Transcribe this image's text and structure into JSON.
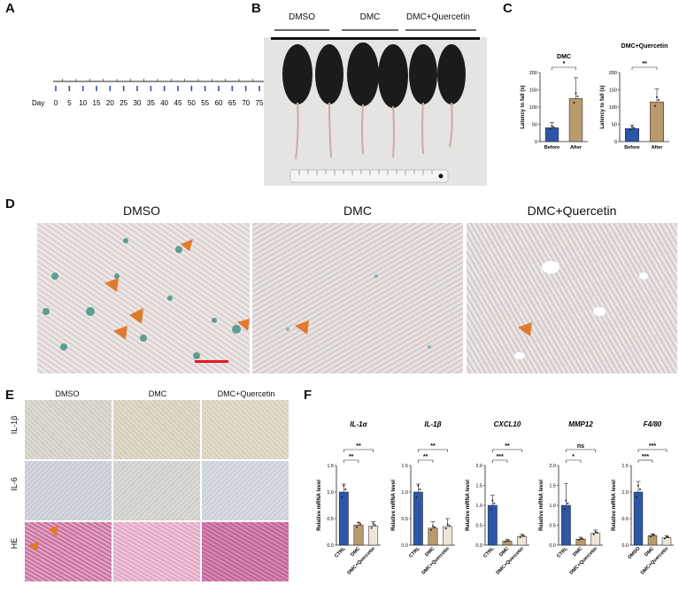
{
  "panels": {
    "A": "A",
    "B": "B",
    "C": "C",
    "D": "D",
    "E": "E",
    "F": "F"
  },
  "timeline": {
    "prefix": "Day",
    "ticks": [
      "0",
      "5",
      "10",
      "15",
      "20",
      "25",
      "30",
      "35",
      "40",
      "45",
      "50",
      "55",
      "60",
      "65",
      "70",
      "75"
    ]
  },
  "panel_b": {
    "groups": [
      "DMSO",
      "DMC",
      "DMC+Quercetin"
    ]
  },
  "panel_d": {
    "conditions": [
      "DMSO",
      "DMC",
      "DMC+Quercetin"
    ]
  },
  "panel_e": {
    "columns": [
      "DMSO",
      "DMC",
      "DMC+Quercetin"
    ],
    "rows": [
      "IL-1β",
      "IL-6",
      "HE"
    ]
  },
  "colors": {
    "blue": "#2d56a8",
    "tan": "#b89a6c",
    "light": "#ede5d6",
    "arrow": "#e07a2e",
    "scalebar": "#e01b1b"
  },
  "chart_data": [
    {
      "id": "C1",
      "type": "bar",
      "title": "DMC",
      "ylabel": "Latency to fall (s)",
      "categories": [
        "Before",
        "After"
      ],
      "values": [
        40,
        125
      ],
      "errors": [
        15,
        60
      ],
      "ylim": [
        0,
        200
      ],
      "yticks": [
        0,
        50,
        100,
        150,
        200
      ],
      "significance": [
        {
          "from": 0,
          "to": 1,
          "label": "*"
        }
      ]
    },
    {
      "id": "C2",
      "type": "bar",
      "title": "DMC+Quercetin",
      "ylabel": "Latency to fall (s)",
      "categories": [
        "Before",
        "After"
      ],
      "values": [
        38,
        115
      ],
      "errors": [
        10,
        38
      ],
      "ylim": [
        0,
        200
      ],
      "yticks": [
        0,
        50,
        100,
        150,
        200
      ],
      "significance": [
        {
          "from": 0,
          "to": 1,
          "label": "**"
        }
      ]
    },
    {
      "id": "F1",
      "type": "bar",
      "title": "IL-1α",
      "ylabel": "Relative mRNA level",
      "categories": [
        "CTRL",
        "DMC",
        "DMC+Quercetin"
      ],
      "values": [
        1.0,
        0.38,
        0.36
      ],
      "errors": [
        0.15,
        0.05,
        0.08
      ],
      "ylim": [
        0,
        1.5
      ],
      "yticks": [
        0.0,
        0.5,
        1.0,
        1.5
      ],
      "significance": [
        {
          "from": 0,
          "to": 1,
          "label": "**"
        },
        {
          "from": 0,
          "to": 2,
          "label": "**"
        }
      ]
    },
    {
      "id": "F2",
      "type": "bar",
      "title": "IL-1β",
      "ylabel": "Relative mRNA level",
      "categories": [
        "CTRL",
        "DMC",
        "DMC+Quercetin"
      ],
      "values": [
        1.0,
        0.32,
        0.35
      ],
      "errors": [
        0.15,
        0.12,
        0.15
      ],
      "ylim": [
        0,
        1.5
      ],
      "yticks": [
        0.0,
        0.5,
        1.0,
        1.5
      ],
      "significance": [
        {
          "from": 0,
          "to": 1,
          "label": "**"
        },
        {
          "from": 0,
          "to": 2,
          "label": "**"
        }
      ]
    },
    {
      "id": "F3",
      "type": "bar",
      "title": "CXCL10",
      "ylabel": "Relative mRNA level",
      "categories": [
        "CTRL",
        "DMC",
        "DMC+Quercetin"
      ],
      "values": [
        1.0,
        0.1,
        0.22
      ],
      "errors": [
        0.25,
        0.05,
        0.05
      ],
      "ylim": [
        0,
        2.0
      ],
      "yticks": [
        0.0,
        0.5,
        1.0,
        1.5,
        2.0
      ],
      "significance": [
        {
          "from": 0,
          "to": 1,
          "label": "***"
        },
        {
          "from": 0,
          "to": 2,
          "label": "**"
        }
      ]
    },
    {
      "id": "F4",
      "type": "bar",
      "title": "MMP12",
      "ylabel": "Relative mRNA level",
      "categories": [
        "CTRL",
        "DMC",
        "DMC+Quercetin"
      ],
      "values": [
        1.0,
        0.15,
        0.3
      ],
      "errors": [
        0.55,
        0.05,
        0.08
      ],
      "ylim": [
        0,
        2.0
      ],
      "yticks": [
        0.0,
        0.5,
        1.0,
        1.5,
        2.0
      ],
      "significance": [
        {
          "from": 0,
          "to": 1,
          "label": "*"
        },
        {
          "from": 0,
          "to": 2,
          "label": "ns"
        }
      ]
    },
    {
      "id": "F5",
      "type": "bar",
      "title": "F4/80",
      "ylabel": "Relative mRNA level",
      "categories": [
        "DMSO",
        "DMC",
        "DMC+Quercetin"
      ],
      "values": [
        1.0,
        0.18,
        0.14
      ],
      "errors": [
        0.2,
        0.03,
        0.04
      ],
      "ylim": [
        0,
        1.5
      ],
      "yticks": [
        0.0,
        0.5,
        1.0,
        1.5
      ],
      "significance": [
        {
          "from": 0,
          "to": 1,
          "label": "***"
        },
        {
          "from": 0,
          "to": 2,
          "label": "***"
        }
      ]
    }
  ]
}
